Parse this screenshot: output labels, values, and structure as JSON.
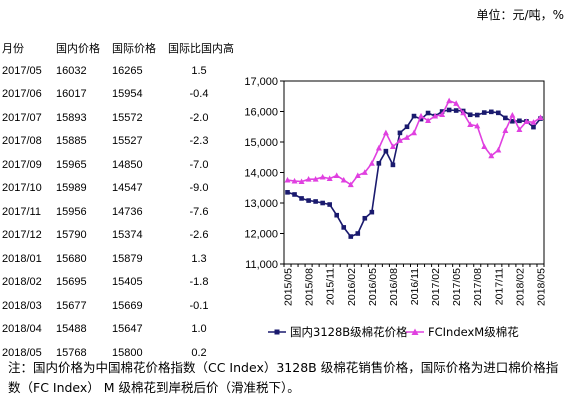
{
  "unit_label": "单位：元/吨，%",
  "table": {
    "headers": [
      "月份",
      "国内价格",
      "国际价格",
      "国际比国内高"
    ],
    "rows": [
      [
        "2017/05",
        "16032",
        "16265",
        "1.5"
      ],
      [
        "2017/06",
        "16017",
        "15954",
        "-0.4"
      ],
      [
        "2017/07",
        "15893",
        "15572",
        "-2.0"
      ],
      [
        "2017/08",
        "15885",
        "15527",
        "-2.3"
      ],
      [
        "2017/09",
        "15965",
        "14850",
        "-7.0"
      ],
      [
        "2017/10",
        "15989",
        "14547",
        "-9.0"
      ],
      [
        "2017/11",
        "15956",
        "14736",
        "-7.6"
      ],
      [
        "2017/12",
        "15790",
        "15374",
        "-2.6"
      ],
      [
        "2018/01",
        "15680",
        "15879",
        "1.3"
      ],
      [
        "2018/02",
        "15695",
        "15405",
        "-1.8"
      ],
      [
        "2018/03",
        "15677",
        "15669",
        "-0.1"
      ],
      [
        "2018/04",
        "15488",
        "15647",
        "1.0"
      ],
      [
        "2018/05",
        "15768",
        "15800",
        "0.2"
      ]
    ]
  },
  "chart_data": {
    "type": "line",
    "x": [
      "2015/05",
      "2015/06",
      "2015/07",
      "2015/08",
      "2015/09",
      "2015/10",
      "2015/11",
      "2015/12",
      "2016/01",
      "2016/02",
      "2016/03",
      "2016/04",
      "2016/05",
      "2016/06",
      "2016/07",
      "2016/08",
      "2016/09",
      "2016/10",
      "2016/11",
      "2016/12",
      "2017/01",
      "2017/02",
      "2017/03",
      "2017/04",
      "2017/05",
      "2017/06",
      "2017/07",
      "2017/08",
      "2017/09",
      "2017/10",
      "2017/11",
      "2017/12",
      "2018/01",
      "2018/02",
      "2018/03",
      "2018/04",
      "2018/05"
    ],
    "x_tick_labels": [
      "2015/05",
      "2015/08",
      "2015/11",
      "2016/02",
      "2016/05",
      "2016/08",
      "2016/11",
      "2017/02",
      "2017/05",
      "2017/08",
      "2017/11",
      "2018/02",
      "2018/05"
    ],
    "series": [
      {
        "name": "国内3128B级棉花价格",
        "color": "#1a1a6e",
        "marker": "square",
        "values": [
          13350,
          13280,
          13150,
          13080,
          13050,
          13000,
          12950,
          12600,
          12200,
          11900,
          12000,
          12500,
          12700,
          14300,
          14700,
          14250,
          15300,
          15500,
          15850,
          15750,
          15950,
          15850,
          16000,
          16050,
          16032,
          16017,
          15893,
          15885,
          15965,
          15989,
          15956,
          15790,
          15680,
          15695,
          15677,
          15488,
          15768
        ]
      },
      {
        "name": "FCIndexM级棉花",
        "color": "#e040e0",
        "marker": "triangle",
        "values": [
          13750,
          13720,
          13700,
          13780,
          13780,
          13850,
          13800,
          13900,
          13750,
          13600,
          13900,
          14000,
          14300,
          14800,
          15300,
          14850,
          15050,
          15150,
          15300,
          15850,
          15700,
          15850,
          15900,
          16350,
          16265,
          15954,
          15572,
          15527,
          14850,
          14547,
          14736,
          15374,
          15879,
          15405,
          15669,
          15647,
          15800
        ]
      }
    ],
    "ylim": [
      11000,
      17000
    ],
    "yticks": [
      11000,
      12000,
      13000,
      14000,
      15000,
      16000,
      17000
    ],
    "ytick_labels": [
      "11,000",
      "12,000",
      "13,000",
      "14,000",
      "15,000",
      "16,000",
      "17,000"
    ],
    "grid": false,
    "legend_position": "bottom"
  },
  "note": "注：国内价格为中国棉花价格指数（CC Index）3128B 级棉花销售价格，国际价格为进口棉价格指数（FC Index） M 级棉花到岸税后价（滑准税下）。"
}
